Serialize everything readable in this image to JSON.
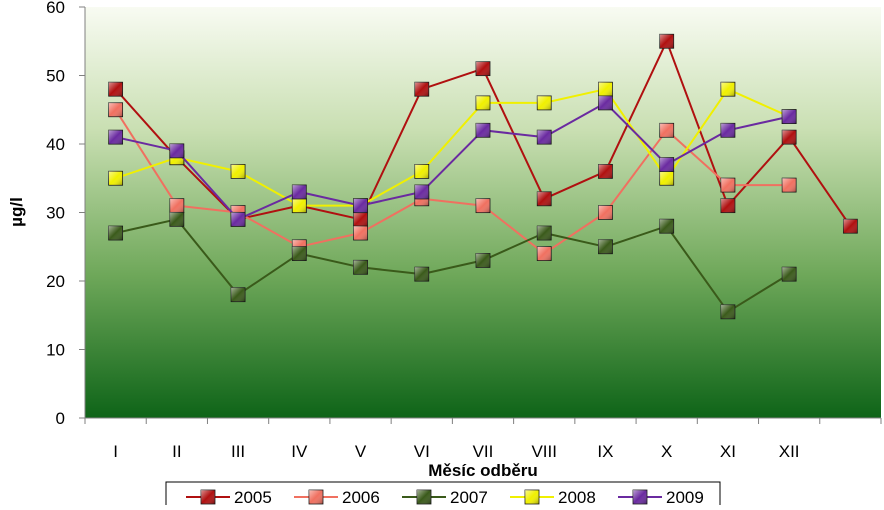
{
  "chart_data": {
    "type": "line",
    "title": "",
    "xlabel": "Měsíc odběru",
    "ylabel": "µg/l",
    "ylim": [
      0,
      60
    ],
    "yticks": [
      0,
      10,
      20,
      30,
      40,
      50,
      60
    ],
    "categories": [
      "I",
      "II",
      "III",
      "IV",
      "V",
      "VI",
      "VII",
      "VIII",
      "IX",
      "X",
      "XI",
      "XII",
      ""
    ],
    "grid": false,
    "legend_position": "bottom",
    "series": [
      {
        "name": "2005",
        "color": "#b01010",
        "values": [
          48,
          38,
          29,
          31,
          29,
          48,
          51,
          32,
          36,
          55,
          31,
          41,
          28
        ]
      },
      {
        "name": "2006",
        "color": "#f07060",
        "values": [
          45,
          31,
          30,
          25,
          27,
          32,
          31,
          24,
          30,
          42,
          34,
          34,
          null
        ]
      },
      {
        "name": "2007",
        "color": "#3a5a1a",
        "values": [
          27,
          29,
          18,
          24,
          22,
          21,
          23,
          27,
          25,
          28,
          15.5,
          21,
          null
        ]
      },
      {
        "name": "2008",
        "color": "#f0f000",
        "values": [
          35,
          38,
          36,
          31,
          31,
          36,
          46,
          46,
          48,
          35,
          48,
          44,
          null
        ]
      },
      {
        "name": "2009",
        "color": "#6a2aa0",
        "values": [
          41,
          39,
          29,
          33,
          31,
          33,
          42,
          41,
          46,
          37,
          42,
          44,
          null
        ]
      }
    ]
  }
}
